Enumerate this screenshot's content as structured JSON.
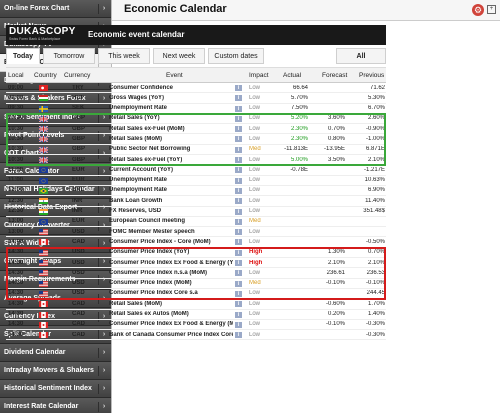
{
  "sidebar": [
    "On-line Forex Chart",
    "Market News",
    "Dukascopy TV",
    "Economic Calendar",
    "Daily High / Low",
    "Movers & Shakers Forex",
    "SWFX Sentiment Index",
    "Pivot Point Levels",
    "COT Charts",
    "Forex Calculator",
    "National Holidays Calendar",
    "Historical Data Export",
    "Currency Converter",
    "SWFX Widget",
    "Overnight Swaps",
    "Margin Requirements",
    "Average Spreads",
    "Currency Index",
    "Split Calendar",
    "Dividend Calendar",
    "Intraday Movers & Shakers",
    "Historical Sentiment Index",
    "Interest Rate Calendar"
  ],
  "sidebar_active": 3,
  "header": {
    "title": "Economic Calendar",
    "gear": "gear-icon",
    "expand": "expand-icon"
  },
  "banner": {
    "logo": "DUKASCOPY",
    "logo_sub": "Swiss Forex Bank & Marketplace",
    "title": "Economic event calendar"
  },
  "tabs": [
    "Today",
    "Tomorrow",
    "This week",
    "Next week",
    "Custom dates",
    "All"
  ],
  "columns": [
    "Local",
    "Country",
    "Currency",
    "Event",
    "Impact",
    "Actual",
    "Forecast",
    "Previous"
  ],
  "colors": {
    "green_box": "#3aa83a",
    "red_box": "#d41b1b",
    "high": "#d11111",
    "medium": "#d8a028",
    "low": "#888888"
  },
  "rows": [
    {
      "time": "09:00",
      "flag": "TR",
      "ccy": "TRY",
      "event": "Consumer Confidence",
      "imp": "Low",
      "act": "66.64",
      "fc": "",
      "prev": "71.62"
    },
    {
      "time": "09:00",
      "flag": "HU",
      "ccy": "HUF",
      "event": "Gross Wages (YoY)",
      "imp": "Low",
      "act": "5.70%",
      "fc": "",
      "prev": "5.30%"
    },
    {
      "time": "09:30",
      "flag": "SE",
      "ccy": "SEK",
      "event": "Unemployment Rate",
      "imp": "Low",
      "act": "7.50%",
      "fc": "",
      "prev": "6.70%"
    },
    {
      "time": "10:30",
      "flag": "GB",
      "ccy": "GBP",
      "event": "Retail Sales (YoY)",
      "imp": "Low",
      "act": "5.20%",
      "fc": "3.60%",
      "prev": "2.60%",
      "green": true
    },
    {
      "time": "10:30",
      "flag": "GB",
      "ccy": "GBP",
      "event": "Retail Sales ex-Fuel (MoM)",
      "imp": "Low",
      "act": "2.30%",
      "fc": "0.70%",
      "prev": "-0.90%",
      "green": true
    },
    {
      "time": "10:30",
      "flag": "GB",
      "ccy": "GBP",
      "event": "Retail Sales (MoM)",
      "imp": "Low",
      "act": "2.30%",
      "fc": "0.80%",
      "prev": "-1.00%",
      "green": true
    },
    {
      "time": "10:30",
      "flag": "GB",
      "ccy": "GBP",
      "event": "Public Sector Net Borrowing",
      "imp": "Med",
      "act": "-11.813E",
      "fc": "-13.95E",
      "prev": "6.871E"
    },
    {
      "time": "10:30",
      "flag": "GB",
      "ccy": "GBP",
      "event": "Retail Sales ex-Fuel (YoY)",
      "imp": "Low",
      "act": "5.00%",
      "fc": "3.50%",
      "prev": "2.10%",
      "green": true
    },
    {
      "time": "11:00",
      "flag": "EU",
      "ccy": "EUR",
      "event": "Current Account (YoY)",
      "imp": "Low",
      "act": "-0.78E",
      "fc": "",
      "prev": "-1.217E"
    },
    {
      "time": "11:00",
      "flag": "EU",
      "ccy": "EUR",
      "event": "Unemployment Rate",
      "imp": "Low",
      "act": "",
      "fc": "",
      "prev": "10.63%"
    },
    {
      "time": "12:00",
      "flag": "BR",
      "ccy": "BRL",
      "event": "Unemployment Rate",
      "imp": "Low",
      "act": "",
      "fc": "",
      "prev": "6.90%"
    },
    {
      "time": "12:30",
      "flag": "IN",
      "ccy": "INR",
      "event": "Bank Loan Growth",
      "imp": "Low",
      "act": "",
      "fc": "",
      "prev": "11.40%"
    },
    {
      "time": "12:30",
      "flag": "IN",
      "ccy": "INR",
      "event": "FX Reserves, USD",
      "imp": "Low",
      "act": "",
      "fc": "",
      "prev": "351.48$"
    },
    {
      "time": "13:00",
      "flag": "EU",
      "ccy": "EUR",
      "event": "European Council meeting",
      "imp": "Med",
      "act": "",
      "fc": "",
      "prev": ""
    },
    {
      "time": "13:00",
      "flag": "US",
      "ccy": "USD",
      "event": "FOMC Member Mester speech",
      "imp": "Low",
      "act": "",
      "fc": "",
      "prev": ""
    },
    {
      "time": "14:00",
      "flag": "CA",
      "ccy": "CAD",
      "event": "Consumer Price Index - Core (MoM)",
      "imp": "Low",
      "act": "",
      "fc": "",
      "prev": "-0.50%"
    },
    {
      "time": "14:30",
      "flag": "US",
      "ccy": "USD",
      "event": "Consumer Price Index (YoY)",
      "imp": "High",
      "act": "",
      "fc": "1.30%",
      "prev": "0.70%"
    },
    {
      "time": "14:30",
      "flag": "US",
      "ccy": "USD",
      "event": "Consumer Price Index Ex Food & Energy (YoY)",
      "imp": "High",
      "act": "",
      "fc": "2.10%",
      "prev": "2.10%"
    },
    {
      "time": "14:30",
      "flag": "US",
      "ccy": "USD",
      "event": "Consumer Price Index n.s.a (MoM)",
      "imp": "Low",
      "act": "",
      "fc": "236.61",
      "prev": "236.53"
    },
    {
      "time": "14:30",
      "flag": "US",
      "ccy": "USD",
      "event": "Consumer Price Index (MoM)",
      "imp": "Med",
      "act": "",
      "fc": "-0.10%",
      "prev": "-0.10%"
    },
    {
      "time": "14:30",
      "flag": "US",
      "ccy": "USD",
      "event": "Consumer Price Index Core s.a",
      "imp": "Low",
      "act": "",
      "fc": "",
      "prev": "244.45"
    },
    {
      "time": "14:30",
      "flag": "CA",
      "ccy": "CAD",
      "event": "Retail Sales (MoM)",
      "imp": "Low",
      "act": "",
      "fc": "-0.60%",
      "prev": "1.70%"
    },
    {
      "time": "14:30",
      "flag": "CA",
      "ccy": "CAD",
      "event": "Retail Sales ex Autos (MoM)",
      "imp": "Low",
      "act": "",
      "fc": "0.20%",
      "prev": "1.40%"
    },
    {
      "time": "14:30",
      "flag": "CA",
      "ccy": "CAD",
      "event": "Consumer Price Index Ex Food & Energy (MoM)",
      "imp": "Low",
      "act": "",
      "fc": "-0.10%",
      "prev": "-0.30%"
    },
    {
      "time": "14:30",
      "flag": "CA",
      "ccy": "CAD",
      "event": "Bank of Canada Consumer Price Index Core (MoM)",
      "imp": "Low",
      "act": "",
      "fc": "",
      "prev": "-0.30%"
    }
  ]
}
